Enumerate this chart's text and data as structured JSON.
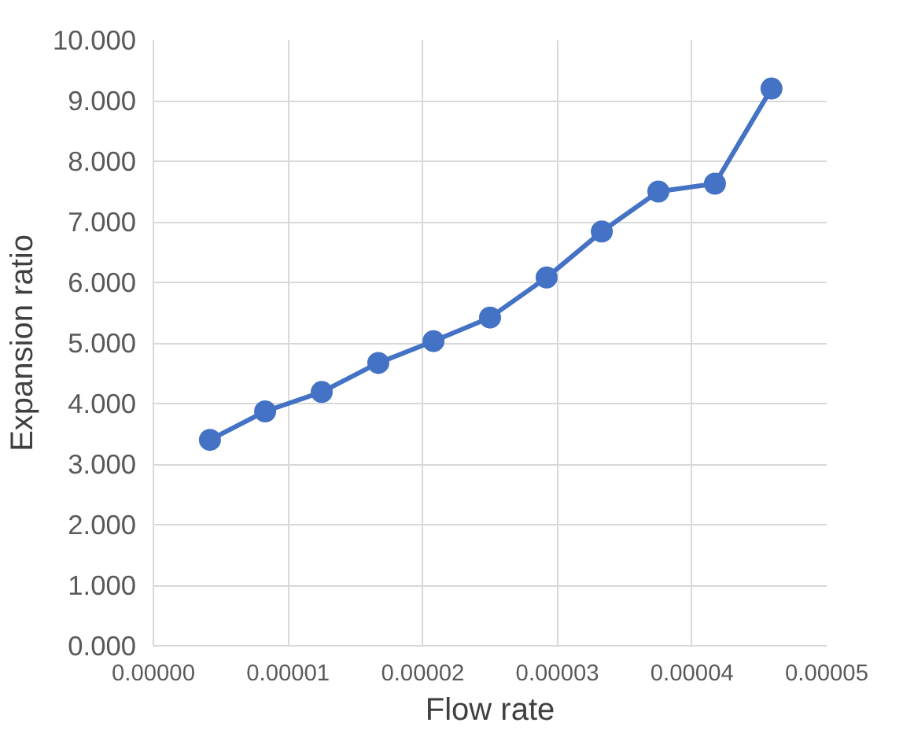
{
  "chart_data": {
    "type": "line",
    "xlabel": "Flow rate",
    "ylabel": "Expansion ratio",
    "x": [
      4.2e-06,
      8.3e-06,
      1.25e-05,
      1.67e-05,
      2.08e-05,
      2.5e-05,
      2.92e-05,
      3.33e-05,
      3.75e-05,
      4.17e-05,
      4.59e-05
    ],
    "series": [
      {
        "color": "#4472c4",
        "values": [
          3.4,
          3.87,
          4.19,
          4.67,
          5.03,
          5.42,
          6.08,
          6.84,
          7.5,
          7.63,
          9.2
        ]
      }
    ],
    "xlim": [
      0,
      5e-05
    ],
    "xticks": [
      {
        "value": 0,
        "label": "0.00000"
      },
      {
        "value": 1e-05,
        "label": "0.00001"
      },
      {
        "value": 2e-05,
        "label": "0.00002"
      },
      {
        "value": 3e-05,
        "label": "0.00003"
      },
      {
        "value": 4e-05,
        "label": "0.00004"
      },
      {
        "value": 5e-05,
        "label": "0.00005"
      }
    ],
    "ylim": [
      0,
      10
    ],
    "yticks": [
      {
        "value": 0,
        "label": "0.000"
      },
      {
        "value": 1,
        "label": "1.000"
      },
      {
        "value": 2,
        "label": "2.000"
      },
      {
        "value": 3,
        "label": "3.000"
      },
      {
        "value": 4,
        "label": "4.000"
      },
      {
        "value": 5,
        "label": "5.000"
      },
      {
        "value": 6,
        "label": "6.000"
      },
      {
        "value": 7,
        "label": "7.000"
      },
      {
        "value": 8,
        "label": "8.000"
      },
      {
        "value": 9,
        "label": "9.000"
      },
      {
        "value": 10,
        "label": "10.000"
      }
    ],
    "grid": true,
    "marker": "circle",
    "line_style": "solid"
  }
}
